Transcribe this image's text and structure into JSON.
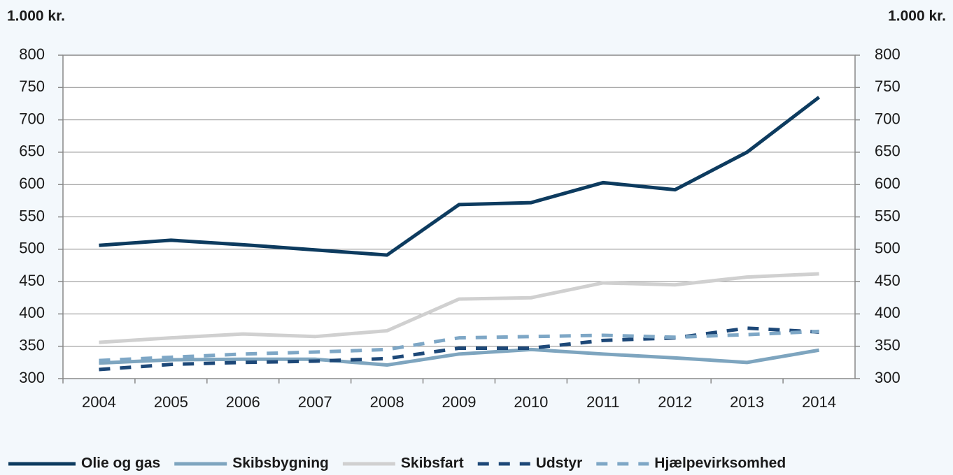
{
  "chart_data": {
    "type": "line",
    "y_label": "1.000 kr.",
    "y2_label": "1.000 kr.",
    "categories": [
      "2004",
      "2005",
      "2006",
      "2007",
      "2008",
      "2009",
      "2010",
      "2011",
      "2012",
      "2013",
      "2014"
    ],
    "series": [
      {
        "name": "Olie og gas",
        "color": "#0d3b5f",
        "dash": false,
        "values": [
          506,
          514,
          507,
          499,
          491,
          569,
          572,
          603,
          592,
          650,
          735
        ]
      },
      {
        "name": "Skibsbygning",
        "color": "#7ea5bf",
        "dash": false,
        "values": [
          324,
          329,
          330,
          330,
          321,
          338,
          345,
          338,
          332,
          325,
          344
        ]
      },
      {
        "name": "Skibsfart",
        "color": "#d0d0d0",
        "dash": false,
        "values": [
          356,
          363,
          369,
          365,
          374,
          423,
          425,
          448,
          445,
          457,
          462
        ]
      },
      {
        "name": "Udstyr",
        "color": "#1d4878",
        "dash": true,
        "values": [
          314,
          322,
          325,
          327,
          331,
          347,
          347,
          359,
          363,
          378,
          372
        ]
      },
      {
        "name": "Hjælpevirksomhed",
        "color": "#7ea7c6",
        "dash": true,
        "values": [
          328,
          333,
          338,
          341,
          345,
          363,
          365,
          367,
          364,
          368,
          373
        ]
      }
    ],
    "ylim": [
      300,
      800
    ],
    "yticks": [
      300,
      350,
      400,
      450,
      500,
      550,
      600,
      650,
      700,
      750,
      800
    ],
    "y2lim": [
      300,
      800
    ],
    "y2ticks": [
      300,
      350,
      400,
      450,
      500,
      550,
      600,
      650,
      700,
      750,
      800
    ],
    "grid": true
  }
}
